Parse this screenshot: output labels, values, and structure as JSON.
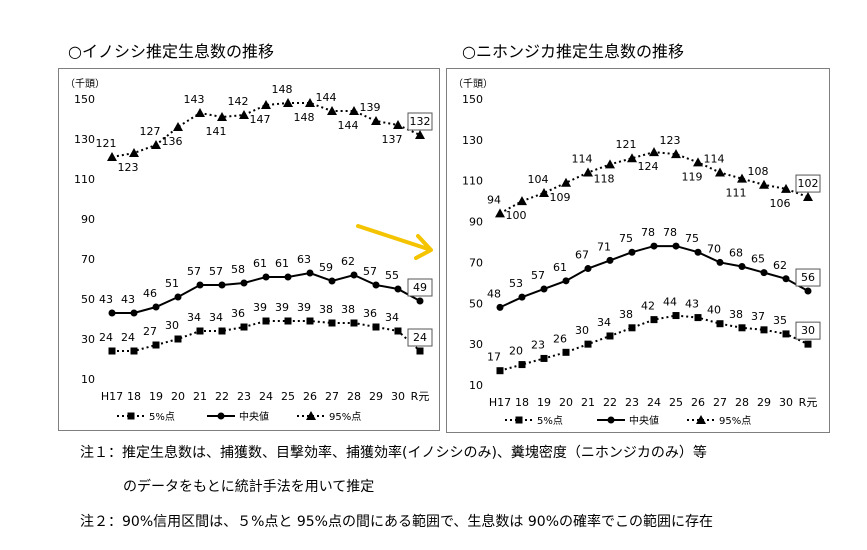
{
  "titles": {
    "left": "○イノシシ推定生息数の推移",
    "right": "○ニホンジカ推定生息数の推移"
  },
  "notes": {
    "note1_line1": "注１：推定生息数は、捕獲数、目撃効率、捕獲効率(イノシシのみ)、糞塊密度（ニホンジカのみ）等",
    "note1_line2": "のデータをもとに統計手法を用いて推定",
    "note2": "注２：90%信用区間は、５%点と 95%点の間にある範囲で、生息数は 90%の確率でこの範囲に存在"
  },
  "colors": {
    "line": "#000000",
    "arrow": "#f5c400",
    "border": "#7f7f7f"
  },
  "chart_data": [
    {
      "type": "line",
      "title": "○イノシシ推定生息数の推移",
      "unit_label": "（千頭）",
      "categories": [
        "H17",
        "18",
        "19",
        "20",
        "21",
        "22",
        "23",
        "24",
        "25",
        "26",
        "27",
        "28",
        "29",
        "30",
        "R元"
      ],
      "yticks": [
        10,
        30,
        50,
        70,
        90,
        110,
        130,
        150
      ],
      "ylim": [
        10,
        150
      ],
      "series": [
        {
          "name": "5%点",
          "style": "dotted-square",
          "values": [
            24,
            24,
            27,
            30,
            34,
            34,
            36,
            39,
            39,
            39,
            38,
            38,
            36,
            34,
            24
          ]
        },
        {
          "name": "中央値",
          "style": "solid-circle",
          "values": [
            43,
            43,
            46,
            51,
            57,
            57,
            58,
            61,
            61,
            63,
            59,
            62,
            57,
            55,
            49
          ]
        },
        {
          "name": "95%点",
          "style": "dotted-triangle",
          "values": [
            121,
            123,
            127,
            136,
            143,
            141,
            142,
            147,
            148,
            148,
            144,
            144,
            139,
            137,
            132
          ]
        }
      ],
      "legend": [
        "5%点",
        "中央値",
        "95%点"
      ]
    },
    {
      "type": "line",
      "title": "○ニホンジカ推定生息数の推移",
      "unit_label": "（千頭）",
      "categories": [
        "H17",
        "18",
        "19",
        "20",
        "21",
        "22",
        "23",
        "24",
        "25",
        "26",
        "27",
        "28",
        "29",
        "30",
        "R元"
      ],
      "yticks": [
        10,
        30,
        50,
        70,
        90,
        110,
        130,
        150
      ],
      "ylim": [
        10,
        150
      ],
      "series": [
        {
          "name": "5%点",
          "style": "dotted-square",
          "values": [
            17,
            20,
            23,
            26,
            30,
            34,
            38,
            42,
            44,
            43,
            40,
            38,
            37,
            35,
            30
          ]
        },
        {
          "name": "中央値",
          "style": "solid-circle",
          "values": [
            48,
            53,
            57,
            61,
            67,
            71,
            75,
            78,
            78,
            75,
            70,
            68,
            65,
            62,
            56
          ]
        },
        {
          "name": "95%点",
          "style": "dotted-triangle",
          "values": [
            94,
            100,
            104,
            109,
            114,
            118,
            121,
            124,
            123,
            119,
            114,
            111,
            108,
            106,
            102
          ]
        }
      ],
      "legend": [
        "5%点",
        "中央値",
        "95%点"
      ]
    }
  ]
}
